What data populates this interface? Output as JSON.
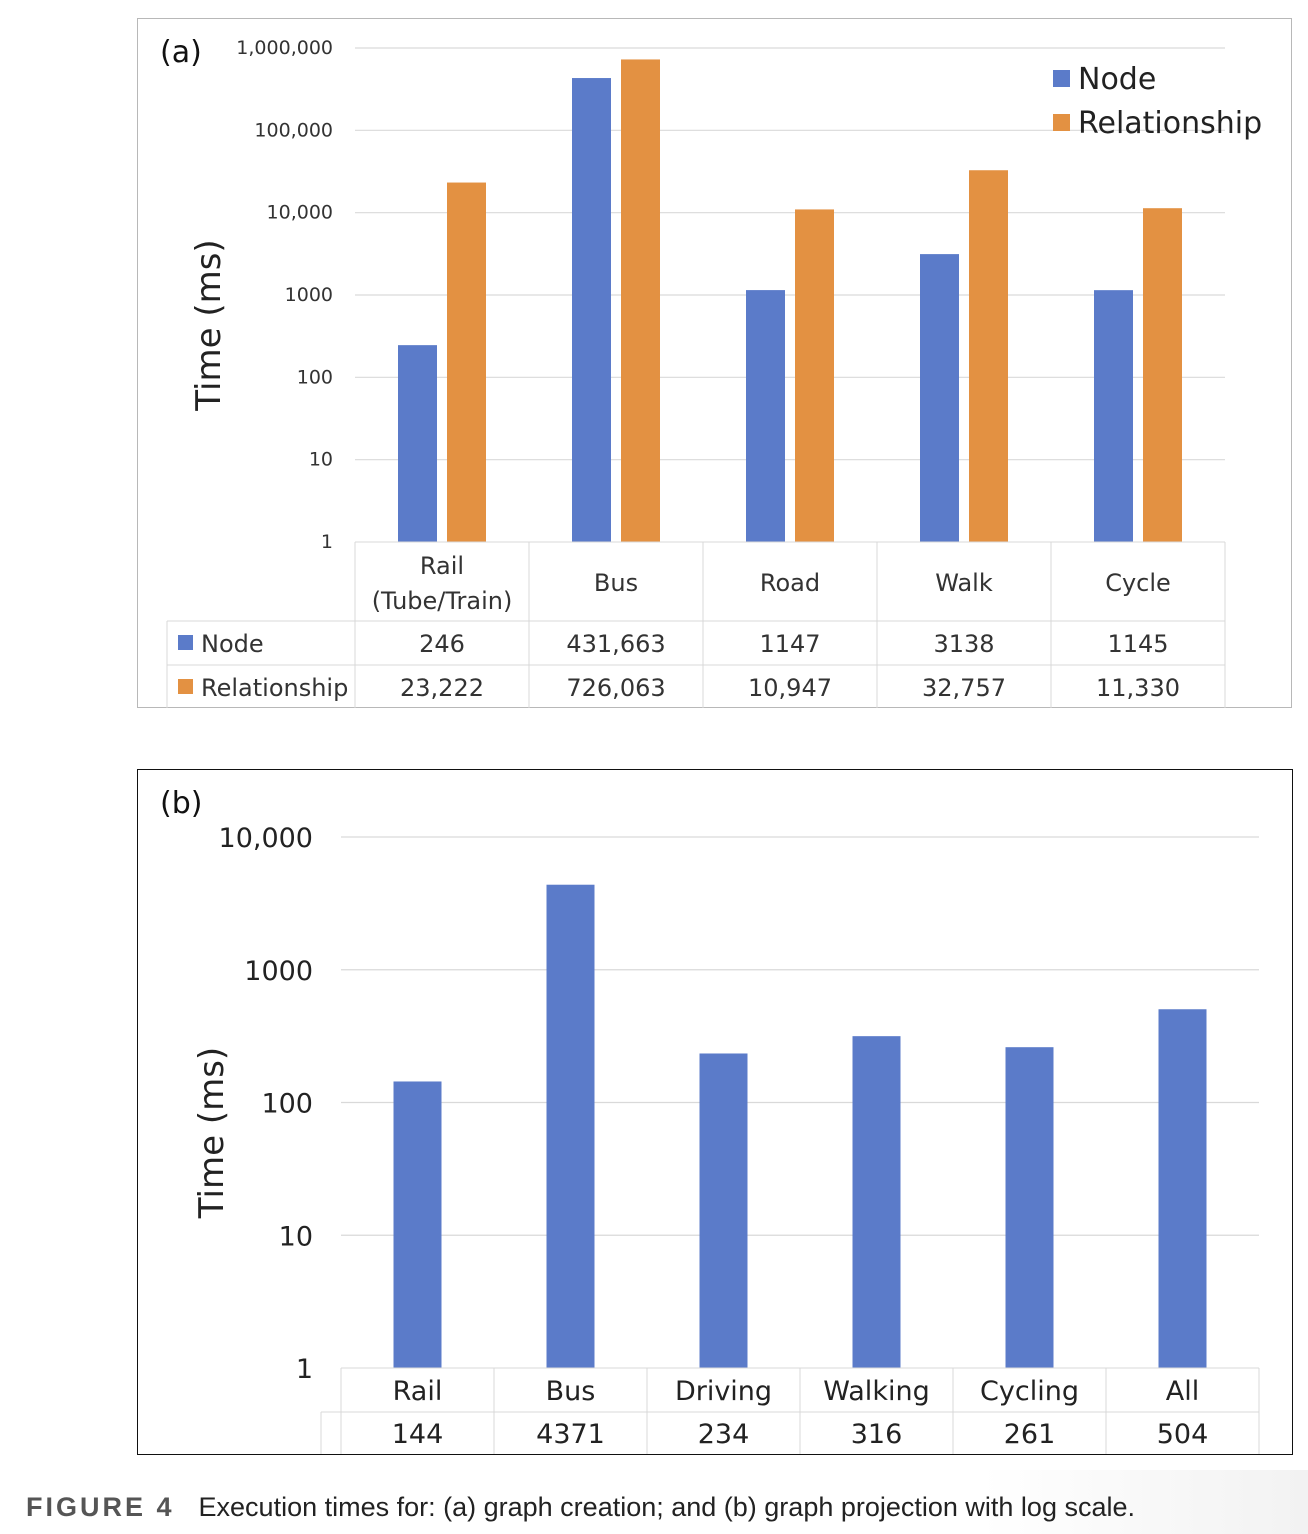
{
  "chart_data": [
    {
      "type": "bar",
      "panel_label": "(a)",
      "scale": "log",
      "ylabel": "Time (ms)",
      "xlabel": "",
      "ylim": [
        1,
        1000000
      ],
      "y_ticks": [
        1,
        10,
        100,
        1000,
        10000,
        100000,
        1000000
      ],
      "y_tick_labels": [
        "1",
        "10",
        "100",
        "1000",
        "10,000",
        "100,000",
        "1,000,000"
      ],
      "grid": true,
      "legend_position": "top-right",
      "categories": [
        "Rail\n(Tube/Train)",
        "Bus",
        "Road",
        "Walk",
        "Cycle"
      ],
      "series": [
        {
          "name": "Node",
          "color": "#5B7BC9",
          "values": [
            246,
            431663,
            1147,
            3138,
            1145
          ],
          "labels": [
            "246",
            "431,663",
            "1147",
            "3138",
            "1145"
          ]
        },
        {
          "name": "Relationship",
          "color": "#E39142",
          "values": [
            23222,
            726063,
            10947,
            32757,
            11330
          ],
          "labels": [
            "23,222",
            "726,063",
            "10,947",
            "32,757",
            "11,330"
          ]
        }
      ]
    },
    {
      "type": "bar",
      "panel_label": "(b)",
      "scale": "log",
      "ylabel": "Time (ms)",
      "xlabel": "",
      "ylim": [
        1,
        10000
      ],
      "y_ticks": [
        1,
        10,
        100,
        1000,
        10000
      ],
      "y_tick_labels": [
        "1",
        "10",
        "100",
        "1000",
        "10,000"
      ],
      "grid": true,
      "categories": [
        "Rail",
        "Bus",
        "Driving",
        "Walking",
        "Cycling",
        "All"
      ],
      "series": [
        {
          "name": "",
          "color": "#5B7BC9",
          "values": [
            144,
            4371,
            234,
            316,
            261,
            504
          ],
          "labels": [
            "144",
            "4371",
            "234",
            "316",
            "261",
            "504"
          ]
        }
      ]
    }
  ],
  "caption": {
    "figure_label": "FIGURE 4",
    "text": "Execution times for: (a) graph creation; and (b) graph projection with log scale."
  }
}
